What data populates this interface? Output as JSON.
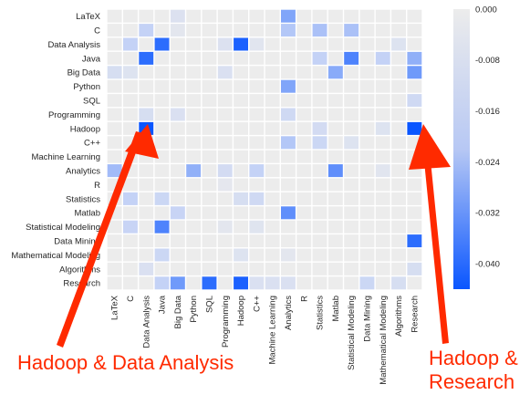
{
  "chart_data": {
    "type": "heatmap",
    "labels": [
      "LaTeX",
      "C",
      "Data Analysis",
      "Java",
      "Big Data",
      "Python",
      "SQL",
      "Programming",
      "Hadoop",
      "C++",
      "Machine Learning",
      "Analytics",
      "R",
      "Statistics",
      "Matlab",
      "Statistical Modeling",
      "Data Mining",
      "Mathematical Modeling",
      "Algorithms",
      "Research"
    ],
    "colorbar": {
      "min": -0.044,
      "max": 0.0,
      "ticks": [
        "0.000",
        "-0.008",
        "-0.016",
        "-0.024",
        "-0.032",
        "-0.040"
      ]
    },
    "colors": {
      "low": "#0a56ff",
      "mid": "#c4d2f6",
      "high": "#ececec",
      "annotation": "#ff2a00"
    },
    "cells": [
      {
        "r": 0,
        "c": 4,
        "v": -0.009
      },
      {
        "r": 0,
        "c": 11,
        "v": -0.03
      },
      {
        "r": 1,
        "c": 2,
        "v": -0.022
      },
      {
        "r": 1,
        "c": 4,
        "v": -0.005
      },
      {
        "r": 1,
        "c": 11,
        "v": -0.024
      },
      {
        "r": 1,
        "c": 13,
        "v": -0.025
      },
      {
        "r": 1,
        "c": 15,
        "v": -0.025
      },
      {
        "r": 2,
        "c": 1,
        "v": -0.022
      },
      {
        "r": 2,
        "c": 3,
        "v": -0.04
      },
      {
        "r": 2,
        "c": 7,
        "v": -0.009
      },
      {
        "r": 2,
        "c": 8,
        "v": -0.042
      },
      {
        "r": 2,
        "c": 9,
        "v": -0.006
      },
      {
        "r": 2,
        "c": 18,
        "v": -0.008
      },
      {
        "r": 3,
        "c": 2,
        "v": -0.04
      },
      {
        "r": 3,
        "c": 13,
        "v": -0.022
      },
      {
        "r": 3,
        "c": 15,
        "v": -0.036
      },
      {
        "r": 3,
        "c": 17,
        "v": -0.022
      },
      {
        "r": 3,
        "c": 19,
        "v": -0.028
      },
      {
        "r": 4,
        "c": 0,
        "v": -0.012
      },
      {
        "r": 4,
        "c": 1,
        "v": -0.008
      },
      {
        "r": 4,
        "c": 7,
        "v": -0.01
      },
      {
        "r": 4,
        "c": 14,
        "v": -0.029
      },
      {
        "r": 4,
        "c": 19,
        "v": -0.032
      },
      {
        "r": 5,
        "c": 11,
        "v": -0.03
      },
      {
        "r": 6,
        "c": 19,
        "v": -0.016
      },
      {
        "r": 7,
        "c": 2,
        "v": -0.012
      },
      {
        "r": 7,
        "c": 4,
        "v": -0.01
      },
      {
        "r": 7,
        "c": 11,
        "v": -0.016
      },
      {
        "r": 8,
        "c": 2,
        "v": -0.044
      },
      {
        "r": 8,
        "c": 13,
        "v": -0.014
      },
      {
        "r": 8,
        "c": 17,
        "v": -0.008
      },
      {
        "r": 8,
        "c": 19,
        "v": -0.044
      },
      {
        "r": 9,
        "c": 2,
        "v": -0.005
      },
      {
        "r": 9,
        "c": 11,
        "v": -0.024
      },
      {
        "r": 9,
        "c": 13,
        "v": -0.018
      },
      {
        "r": 9,
        "c": 15,
        "v": -0.008
      },
      {
        "r": 11,
        "c": 0,
        "v": -0.026
      },
      {
        "r": 11,
        "c": 5,
        "v": -0.028
      },
      {
        "r": 11,
        "c": 7,
        "v": -0.014
      },
      {
        "r": 11,
        "c": 9,
        "v": -0.022
      },
      {
        "r": 11,
        "c": 14,
        "v": -0.034
      },
      {
        "r": 11,
        "c": 17,
        "v": -0.006
      },
      {
        "r": 12,
        "c": 7,
        "v": -0.004
      },
      {
        "r": 13,
        "c": 1,
        "v": -0.022
      },
      {
        "r": 13,
        "c": 3,
        "v": -0.018
      },
      {
        "r": 13,
        "c": 8,
        "v": -0.012
      },
      {
        "r": 13,
        "c": 9,
        "v": -0.016
      },
      {
        "r": 14,
        "c": 4,
        "v": -0.02
      },
      {
        "r": 14,
        "c": 11,
        "v": -0.034
      },
      {
        "r": 15,
        "c": 1,
        "v": -0.02
      },
      {
        "r": 15,
        "c": 3,
        "v": -0.036
      },
      {
        "r": 15,
        "c": 7,
        "v": -0.005
      },
      {
        "r": 15,
        "c": 9,
        "v": -0.007
      },
      {
        "r": 16,
        "c": 19,
        "v": -0.04
      },
      {
        "r": 17,
        "c": 3,
        "v": -0.018
      },
      {
        "r": 17,
        "c": 8,
        "v": -0.008
      },
      {
        "r": 17,
        "c": 11,
        "v": -0.005
      },
      {
        "r": 18,
        "c": 2,
        "v": -0.01
      },
      {
        "r": 18,
        "c": 19,
        "v": -0.012
      },
      {
        "r": 19,
        "c": 3,
        "v": -0.022
      },
      {
        "r": 19,
        "c": 4,
        "v": -0.032
      },
      {
        "r": 19,
        "c": 6,
        "v": -0.04
      },
      {
        "r": 19,
        "c": 8,
        "v": -0.042
      },
      {
        "r": 19,
        "c": 9,
        "v": -0.01
      },
      {
        "r": 19,
        "c": 10,
        "v": -0.01
      },
      {
        "r": 19,
        "c": 11,
        "v": -0.01
      },
      {
        "r": 19,
        "c": 16,
        "v": -0.018
      },
      {
        "r": 19,
        "c": 18,
        "v": -0.012
      }
    ]
  },
  "annotations": {
    "left": "Hadoop & Data Analysis",
    "right": "Hadoop &\nResearch"
  }
}
